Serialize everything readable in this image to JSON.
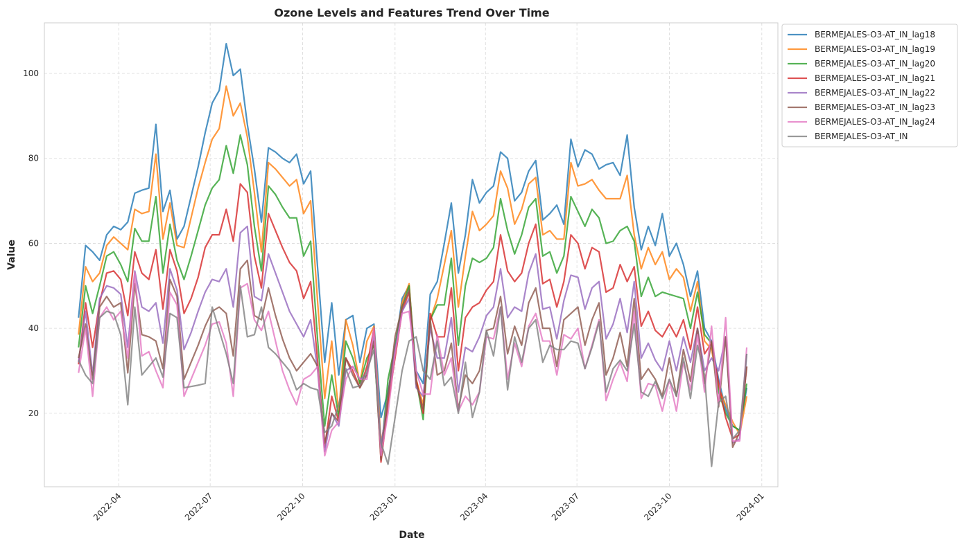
{
  "chart_data": {
    "type": "line",
    "title": "Ozone Levels and Features Trend Over Time",
    "x_label": "Date",
    "y_label": "Value",
    "x": [
      "2022-02-20",
      "2022-02-27",
      "2022-03-06",
      "2022-03-13",
      "2022-03-20",
      "2022-03-27",
      "2022-04-03",
      "2022-04-10",
      "2022-04-17",
      "2022-04-24",
      "2022-05-01",
      "2022-05-08",
      "2022-05-15",
      "2022-05-22",
      "2022-05-29",
      "2022-06-05",
      "2022-06-12",
      "2022-06-19",
      "2022-06-26",
      "2022-07-03",
      "2022-07-10",
      "2022-07-17",
      "2022-07-24",
      "2022-07-31",
      "2022-08-07",
      "2022-08-14",
      "2022-08-21",
      "2022-08-28",
      "2022-09-04",
      "2022-09-11",
      "2022-09-18",
      "2022-09-25",
      "2022-10-02",
      "2022-10-09",
      "2022-10-16",
      "2022-10-23",
      "2022-10-30",
      "2022-11-06",
      "2022-11-13",
      "2022-11-20",
      "2022-11-27",
      "2022-12-04",
      "2022-12-11",
      "2022-12-18",
      "2022-12-25",
      "2023-01-01",
      "2023-01-08",
      "2023-01-15",
      "2023-01-22",
      "2023-01-29",
      "2023-02-05",
      "2023-02-12",
      "2023-02-19",
      "2023-02-26",
      "2023-03-05",
      "2023-03-12",
      "2023-03-19",
      "2023-03-26",
      "2023-04-02",
      "2023-04-09",
      "2023-04-16",
      "2023-04-23",
      "2023-04-30",
      "2023-05-07",
      "2023-05-14",
      "2023-05-21",
      "2023-05-28",
      "2023-06-04",
      "2023-06-11",
      "2023-06-18",
      "2023-06-25",
      "2023-07-02",
      "2023-07-09",
      "2023-07-16",
      "2023-07-23",
      "2023-07-30",
      "2023-08-06",
      "2023-08-13",
      "2023-08-20",
      "2023-08-27",
      "2023-09-03",
      "2023-09-10",
      "2023-09-17",
      "2023-09-24",
      "2023-10-01",
      "2023-10-08",
      "2023-10-15",
      "2023-10-22",
      "2023-10-29",
      "2023-11-05",
      "2023-11-12",
      "2023-11-19",
      "2023-11-26",
      "2023-12-03",
      "2023-12-10",
      "2023-12-17"
    ],
    "series": [
      {
        "name": "BERMEJALES-O3-AT_IN_lag18",
        "color": "#1f77b4",
        "values": [
          42.5,
          59.5,
          58,
          56,
          62,
          64,
          63.2,
          65,
          71.8,
          72.5,
          73,
          88,
          67.5,
          72.5,
          61,
          64,
          71,
          78,
          86,
          93,
          96,
          107,
          99.5,
          101,
          88,
          77.5,
          65,
          82.5,
          81.5,
          80,
          79,
          81,
          74,
          77,
          54,
          32,
          46,
          29,
          42,
          43,
          32,
          40,
          41,
          19,
          25,
          35,
          47,
          50,
          30,
          27,
          48,
          51,
          60,
          69.5,
          53,
          62,
          75,
          69.5,
          72,
          73.5,
          81.5,
          80,
          70,
          72,
          77,
          79.5,
          65.5,
          67,
          69,
          64.5,
          84.5,
          78,
          82,
          81,
          77.5,
          78.5,
          79,
          76,
          85.5,
          68.5,
          58.5,
          64,
          59.5,
          67,
          57,
          60,
          55,
          47.5,
          53.5,
          40,
          37,
          28,
          21,
          17,
          16,
          26
        ]
      },
      {
        "name": "BERMEJALES-O3-AT_IN_lag19",
        "color": "#ff7f0e",
        "values": [
          38.5,
          54.5,
          51,
          53,
          59.5,
          61.5,
          60,
          58.5,
          68,
          67,
          67.5,
          81,
          61,
          69.5,
          59.5,
          59,
          66,
          73,
          79,
          84.5,
          87,
          97,
          90,
          93,
          85,
          72,
          58,
          79,
          77.5,
          75.5,
          73.5,
          75,
          67,
          70,
          46,
          23.5,
          37,
          20,
          42,
          36,
          27,
          37,
          40.5,
          13,
          22,
          34,
          46,
          50.5,
          28,
          22,
          42,
          47,
          55,
          63,
          45,
          57,
          67.5,
          63,
          64.5,
          66.5,
          77,
          73,
          64.5,
          68,
          74,
          75.5,
          62,
          63,
          61,
          61,
          79,
          73.5,
          74,
          75,
          72.5,
          70.5,
          70.5,
          70.5,
          76,
          62,
          54,
          59,
          55,
          58,
          51.5,
          54,
          52,
          44,
          51,
          37,
          35,
          26,
          22,
          18,
          15,
          24
        ]
      },
      {
        "name": "BERMEJALES-O3-AT_IN_lag20",
        "color": "#2ca02c",
        "values": [
          35.5,
          50,
          43.5,
          50,
          57,
          58,
          55,
          51,
          63.5,
          60.5,
          60.5,
          71,
          53,
          64.5,
          56,
          51.5,
          57,
          63,
          69,
          73,
          75,
          83,
          76.5,
          85.5,
          78.5,
          64,
          53.5,
          73.5,
          71.5,
          68.5,
          66,
          66,
          57,
          60.5,
          37,
          17,
          29,
          19,
          37,
          33,
          27,
          33,
          36,
          10,
          28,
          36,
          45,
          50,
          28,
          18.5,
          42,
          45.5,
          45.5,
          56.5,
          36,
          50,
          56.5,
          55.5,
          56.5,
          59,
          70.5,
          63,
          57.5,
          62,
          68.5,
          70.5,
          57,
          58,
          53,
          57,
          71,
          67.5,
          64,
          68,
          66,
          60,
          60.5,
          63,
          64,
          60.5,
          47.5,
          52,
          47.5,
          48.5,
          48,
          47.5,
          47,
          40,
          48.5,
          38.5,
          36.5,
          25,
          20,
          17,
          16,
          27
        ]
      },
      {
        "name": "BERMEJALES-O3-AT_IN_lag21",
        "color": "#d62728",
        "values": [
          31.5,
          46,
          35.5,
          46,
          53,
          53.5,
          51.5,
          43,
          58,
          53,
          51.5,
          58.5,
          44.5,
          58.5,
          53.5,
          43.5,
          47,
          52,
          59,
          62,
          62,
          68,
          60.5,
          74,
          72,
          57,
          49.5,
          67,
          63,
          59,
          55.5,
          53.5,
          47,
          51,
          32,
          12,
          24,
          18,
          33,
          30,
          26,
          31,
          40,
          8.5,
          22,
          33,
          44,
          48.5,
          28,
          20,
          43.5,
          38,
          38,
          49.5,
          30,
          42.5,
          45,
          46,
          49,
          51,
          62,
          53.5,
          51,
          53,
          60,
          64.5,
          50.5,
          51.5,
          45,
          51,
          62,
          60,
          54,
          59,
          58,
          48.5,
          49.5,
          55,
          51,
          54.5,
          40.5,
          44,
          39.5,
          38,
          41,
          38,
          42,
          35,
          45,
          34,
          36.5,
          27,
          19,
          14,
          15,
          31
        ]
      },
      {
        "name": "BERMEJALES-O3-AT_IN_lag22",
        "color": "#9467bd",
        "values": [
          32,
          44,
          29,
          47,
          50,
          49.5,
          48,
          35.5,
          53.5,
          45,
          44,
          46,
          36.5,
          54,
          49,
          35,
          39,
          44,
          48.5,
          51.5,
          51,
          54,
          45,
          62.5,
          64,
          47.5,
          46.5,
          57.5,
          53,
          48.5,
          44,
          41,
          38,
          42,
          30,
          11,
          20,
          17,
          30,
          31,
          28,
          29,
          38,
          12,
          24,
          35,
          44,
          47,
          26,
          24,
          40,
          33,
          33,
          42.5,
          25,
          35.5,
          34.5,
          38,
          43,
          45,
          54,
          42.5,
          45,
          44,
          53,
          57.5,
          44.5,
          45,
          37.5,
          46.5,
          52.5,
          52,
          44.5,
          49.5,
          51,
          37.5,
          41,
          47,
          39,
          51,
          33,
          36.5,
          32.5,
          30,
          37,
          30,
          38,
          32,
          40,
          30,
          33,
          30,
          38,
          13,
          14,
          34
        ]
      },
      {
        "name": "BERMEJALES-O3-AT_IN_lag23",
        "color": "#8c564b",
        "values": [
          33,
          41,
          28,
          45,
          47.5,
          45,
          46,
          29.5,
          50.5,
          38.5,
          38,
          37,
          30.5,
          51.5,
          47.5,
          28,
          32,
          36,
          40.5,
          44,
          45,
          43.5,
          33.5,
          54,
          56,
          43,
          42,
          49.5,
          43,
          37.5,
          33,
          30,
          32,
          34,
          31,
          13,
          20,
          18,
          33,
          29,
          26,
          29,
          37,
          9,
          24,
          38,
          45,
          49,
          27,
          21,
          42,
          29,
          30,
          36.5,
          21,
          29,
          27,
          30,
          39.5,
          40,
          47.5,
          34,
          40.5,
          36,
          46,
          49.5,
          40,
          40,
          31,
          42,
          43.5,
          45,
          36,
          42,
          46,
          29,
          33,
          39,
          31,
          47,
          28,
          30.5,
          28,
          24,
          33,
          24,
          35,
          27.5,
          40,
          27,
          37,
          21.5,
          38,
          12,
          15.5,
          31
        ]
      },
      {
        "name": "BERMEJALES-O3-AT_IN_lag24",
        "color": "#e377c2",
        "values": [
          29.5,
          40,
          24,
          42.5,
          45,
          42,
          44,
          33,
          53,
          33.5,
          34.5,
          30,
          26,
          48.5,
          45.5,
          24,
          28,
          32,
          36,
          41,
          41.5,
          36.5,
          24,
          49.5,
          50.5,
          42,
          39.5,
          44,
          37,
          30,
          25.5,
          22,
          28,
          29,
          31,
          10,
          16,
          18,
          28,
          31,
          28,
          28,
          40,
          10,
          20,
          34,
          43.5,
          44,
          30,
          24.5,
          24.5,
          38.5,
          29,
          33,
          20.5,
          24,
          22,
          25,
          38,
          37.5,
          45,
          28,
          36.5,
          31,
          40.5,
          43.5,
          37,
          37,
          29,
          38.5,
          37.5,
          40,
          30.5,
          36,
          42,
          23,
          28,
          32,
          27.5,
          44,
          23.5,
          27,
          26.5,
          20.5,
          28,
          20.5,
          32,
          25.5,
          38.5,
          25,
          40.5,
          22,
          42.5,
          13.5,
          13.5,
          35.5
        ]
      },
      {
        "name": "BERMEJALES-O3-AT_IN",
        "color": "#7f7f7f",
        "values": [
          32.5,
          29,
          27,
          42.5,
          44,
          43.5,
          38.5,
          22,
          45,
          29,
          31,
          33,
          28.5,
          43.5,
          42.5,
          26,
          26.3,
          26.6,
          27,
          45,
          39.5,
          34,
          27,
          50,
          38,
          38.5,
          45,
          35.5,
          34,
          32,
          30,
          25.5,
          27,
          26,
          25.5,
          15.5,
          17,
          22,
          30.5,
          26,
          26.5,
          30,
          35,
          13,
          8,
          19,
          30,
          37,
          38,
          30,
          28,
          37,
          26.5,
          28.5,
          20,
          32,
          19,
          25,
          39.5,
          33.5,
          45,
          25.5,
          38,
          32,
          40,
          42,
          32,
          36,
          35,
          35,
          37,
          36.5,
          30.5,
          35.5,
          41.5,
          25,
          30.5,
          32.5,
          30,
          41,
          25,
          24,
          27.5,
          23.5,
          28,
          24,
          33,
          23.5,
          36,
          29,
          7.5,
          22.5,
          24,
          14,
          16,
          34
        ]
      }
    ],
    "xlim": [
      "2022-01-17",
      "2024-01-17"
    ],
    "xticks": [
      {
        "value": "2022-04-01",
        "label": "2022-04"
      },
      {
        "value": "2022-07-01",
        "label": "2022-07"
      },
      {
        "value": "2022-10-01",
        "label": "2022-10"
      },
      {
        "value": "2023-01-01",
        "label": "2023-01"
      },
      {
        "value": "2023-04-01",
        "label": "2023-04"
      },
      {
        "value": "2023-07-01",
        "label": "2023-07"
      },
      {
        "value": "2023-10-01",
        "label": "2023-10"
      },
      {
        "value": "2024-01-01",
        "label": "2024-01"
      }
    ],
    "ylim": [
      2.7,
      111.9
    ],
    "yticks": [
      20,
      40,
      60,
      80,
      100
    ],
    "grid": true,
    "legend": "outside-upper-right"
  }
}
